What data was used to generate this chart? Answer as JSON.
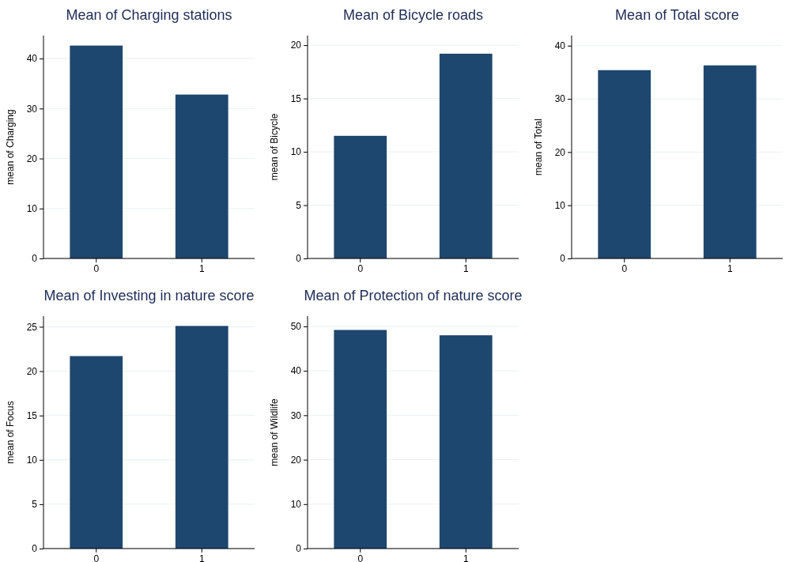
{
  "chart_data": [
    {
      "type": "bar",
      "title": "Mean of Charging stations",
      "ylabel": "mean of Charging",
      "categories": [
        "0",
        "1"
      ],
      "values": [
        42.6,
        32.8
      ],
      "color": "#1d476e",
      "ylim": [
        0,
        44.6
      ],
      "yticks": [
        0,
        10,
        20,
        30,
        40
      ],
      "grid": "y"
    },
    {
      "type": "bar",
      "title": "Mean of Bicycle roads",
      "ylabel": "mean of Bicycle",
      "categories": [
        "0",
        "1"
      ],
      "values": [
        11.5,
        19.2
      ],
      "color": "#1d476e",
      "ylim": [
        0,
        20.9
      ],
      "yticks": [
        0,
        5,
        10,
        15,
        20
      ],
      "grid": "y"
    },
    {
      "type": "bar",
      "title": "Mean of Total score",
      "ylabel": "mean of Total",
      "categories": [
        "0",
        "1"
      ],
      "values": [
        35.4,
        36.3
      ],
      "color": "#1d476e",
      "ylim": [
        0,
        41.9
      ],
      "yticks": [
        0,
        10,
        20,
        30,
        40
      ],
      "grid": "y"
    },
    {
      "type": "bar",
      "title": "Mean of Investing in nature score",
      "ylabel": "mean of Focus",
      "categories": [
        "0",
        "1"
      ],
      "values": [
        21.7,
        25.1
      ],
      "color": "#1d476e",
      "ylim": [
        0,
        26.2
      ],
      "yticks": [
        0,
        5,
        10,
        15,
        20,
        25
      ],
      "grid": "y"
    },
    {
      "type": "bar",
      "title": "Mean of Protection of nature score",
      "ylabel": "mean of Wildlife",
      "categories": [
        "0",
        "1"
      ],
      "values": [
        49.2,
        48.0
      ],
      "color": "#1d476e",
      "ylim": [
        0,
        52.3
      ],
      "yticks": [
        0,
        10,
        20,
        30,
        40,
        50
      ],
      "grid": "y"
    }
  ]
}
